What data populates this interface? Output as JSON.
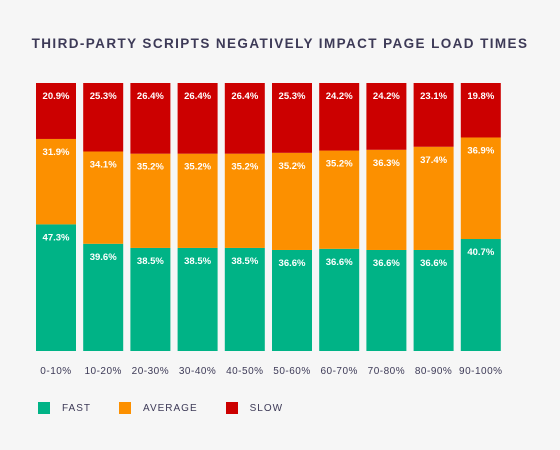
{
  "chart_data": {
    "type": "bar",
    "stacked": true,
    "title": "THIRD-PARTY SCRIPTS NEGATIVELY IMPACT PAGE LOAD TIMES",
    "categories": [
      "0-10%",
      "10-20%",
      "20-30%",
      "30-40%",
      "40-50%",
      "50-60%",
      "60-70%",
      "70-80%",
      "80-90%",
      "90-100%"
    ],
    "series": [
      {
        "name": "FAST",
        "color": "#00b386",
        "values": [
          47.3,
          39.6,
          38.5,
          38.5,
          38.5,
          36.6,
          36.6,
          36.6,
          36.6,
          40.7
        ]
      },
      {
        "name": "AVERAGE",
        "color": "#fc9000",
        "values": [
          31.9,
          34.1,
          35.2,
          35.2,
          35.2,
          35.2,
          35.2,
          36.3,
          37.4,
          36.9
        ]
      },
      {
        "name": "SLOW",
        "color": "#cc0000",
        "values": [
          20.9,
          25.3,
          26.4,
          26.4,
          26.4,
          25.3,
          24.2,
          24.2,
          23.1,
          19.8
        ]
      }
    ],
    "value_suffix": "%",
    "legend_position": "bottom-left",
    "grid": false
  }
}
